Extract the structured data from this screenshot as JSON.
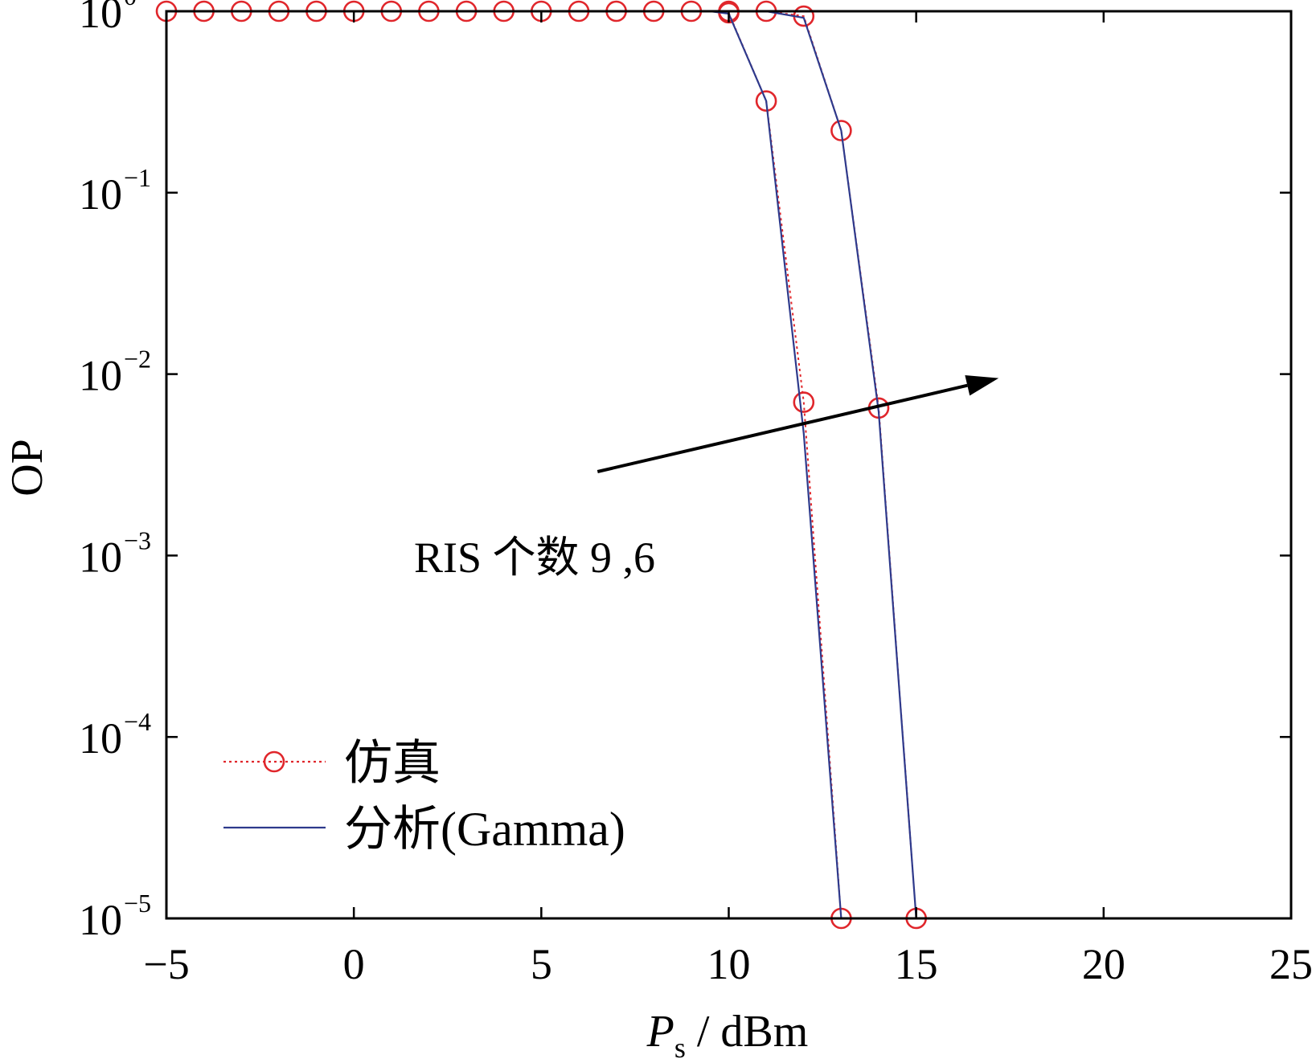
{
  "chart_data": {
    "type": "line",
    "title": "",
    "xlabel": {
      "main": "P",
      "sub": "s",
      "rest": " / dBm"
    },
    "ylabel": "OP",
    "xlim": [
      -5,
      25
    ],
    "ylim": [
      1e-05,
      1
    ],
    "yscale": "log",
    "xticks": [
      -5,
      0,
      5,
      10,
      15,
      20,
      25
    ],
    "xtick_labels": [
      "−5",
      "0",
      "5",
      "10",
      "15",
      "20",
      "25"
    ],
    "yticks": [
      {
        "value": 1,
        "base": "10",
        "exp": "0"
      },
      {
        "value": 0.1,
        "base": "10",
        "exp": "−1"
      },
      {
        "value": 0.01,
        "base": "10",
        "exp": "−2"
      },
      {
        "value": 0.001,
        "base": "10",
        "exp": "−3"
      },
      {
        "value": 0.0001,
        "base": "10",
        "exp": "−4"
      },
      {
        "value": 1e-05,
        "base": "10",
        "exp": "−5"
      }
    ],
    "grid": false,
    "legend": {
      "placement": "bottom-left",
      "entries": [
        {
          "label": "仿真",
          "style": "dotted-circle",
          "color": "#e0262b"
        },
        {
          "label": "分析(Gamma)",
          "style": "solid",
          "color": "#2e3a8c"
        }
      ]
    },
    "annotation": {
      "text": "RIS 个数  9 ,6",
      "arrow_from": [
        6.5,
        0.0029
      ],
      "arrow_to": [
        17.2,
        0.0095
      ]
    },
    "series": [
      {
        "name": "仿真",
        "color": "#e0262b",
        "markers": "circle",
        "line": "dotted",
        "points": [
          [
            -5,
            1
          ],
          [
            -4,
            1
          ],
          [
            -3,
            1
          ],
          [
            -2,
            1
          ],
          [
            -1,
            1
          ],
          [
            0,
            1
          ],
          [
            1,
            1
          ],
          [
            2,
            1
          ],
          [
            3,
            1
          ],
          [
            4,
            1
          ],
          [
            5,
            1
          ],
          [
            6,
            1
          ],
          [
            7,
            1
          ],
          [
            8,
            1
          ],
          [
            9,
            1
          ],
          [
            10,
            1
          ],
          [
            11,
            1
          ],
          [
            12,
            0.94
          ],
          [
            13,
            0.22
          ],
          [
            14,
            0.0065
          ],
          [
            15,
            1e-05
          ]
        ]
      },
      {
        "name": "仿真",
        "color": "#e0262b",
        "markers": "circle",
        "line": "dotted",
        "points": [
          [
            10,
            0.98
          ],
          [
            11,
            0.32
          ],
          [
            12,
            0.007
          ],
          [
            13,
            1e-05
          ]
        ]
      },
      {
        "name": "分析(Gamma)",
        "color": "#2e3a8c",
        "markers": "none",
        "line": "solid",
        "points": [
          [
            -5,
            1
          ],
          [
            9.5,
            1
          ],
          [
            10,
            0.97
          ],
          [
            11,
            0.32
          ],
          [
            12,
            0.0047
          ],
          [
            13,
            1e-05
          ]
        ]
      },
      {
        "name": "分析(Gamma)",
        "color": "#2e3a8c",
        "markers": "none",
        "line": "solid",
        "points": [
          [
            -5,
            1
          ],
          [
            11,
            1
          ],
          [
            12,
            0.92
          ],
          [
            13,
            0.22
          ],
          [
            14,
            0.0062
          ],
          [
            15,
            1e-05
          ]
        ]
      }
    ]
  }
}
